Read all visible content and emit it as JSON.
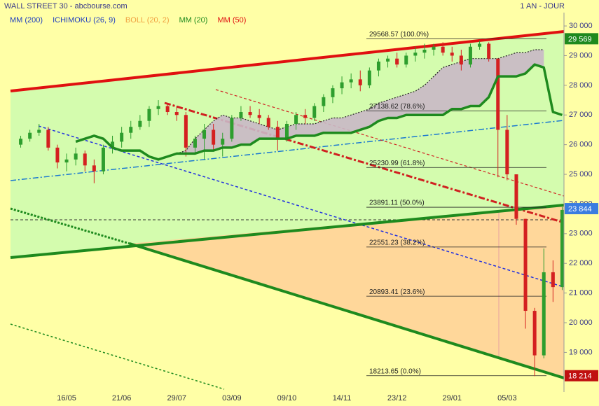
{
  "chart_data": {
    "type": "candlestick",
    "title": "WALL STREET 30 - abcbourse.com",
    "period": "1 AN - JOUR",
    "legend": [
      {
        "name": "MM (200)",
        "color": "#1f3fbf"
      },
      {
        "name": "ICHIMOKU (26, 9)",
        "color": "#1f3fbf"
      },
      {
        "name": "BOLL (20, 2)",
        "color": "#f0a040"
      },
      {
        "name": "MM (20)",
        "color": "#1e8a1e"
      },
      {
        "name": "MM (50)",
        "color": "#e01010"
      }
    ],
    "up_color": "#2e9e2e",
    "down_color": "#d42020",
    "categories": [
      null,
      null,
      null,
      null,
      null,
      "16/05",
      null,
      null,
      null,
      null,
      null,
      "21/06",
      null,
      null,
      null,
      null,
      null,
      "29/07",
      null,
      null,
      null,
      null,
      null,
      "03/09",
      null,
      null,
      null,
      null,
      null,
      "09/10",
      null,
      null,
      null,
      null,
      null,
      "14/11",
      null,
      null,
      null,
      null,
      null,
      "23/12",
      null,
      null,
      null,
      null,
      null,
      "29/01",
      null,
      null,
      null,
      null,
      null,
      "05/03",
      null,
      null,
      null,
      null,
      null,
      null
    ],
    "ohlc": [
      [
        26000,
        26300,
        25900,
        26200
      ],
      [
        26200,
        26500,
        26100,
        26400
      ],
      [
        26400,
        26700,
        26300,
        26500
      ],
      [
        26500,
        26600,
        25800,
        25900
      ],
      [
        25900,
        26000,
        25200,
        25400
      ],
      [
        25400,
        25700,
        25100,
        25500
      ],
      [
        25500,
        25900,
        25300,
        25700
      ],
      [
        25700,
        25800,
        25100,
        25300
      ],
      [
        25300,
        25500,
        24700,
        25100
      ],
      [
        25100,
        26000,
        25000,
        25900
      ],
      [
        25900,
        26300,
        25700,
        26100
      ],
      [
        26100,
        26600,
        25900,
        26400
      ],
      [
        26400,
        26800,
        26200,
        26600
      ],
      [
        26600,
        27000,
        26500,
        26800
      ],
      [
        26800,
        27300,
        26600,
        27200
      ],
      [
        27200,
        27500,
        27000,
        27300
      ],
      [
        27300,
        27400,
        27000,
        27100
      ],
      [
        27100,
        27300,
        26800,
        27000
      ],
      [
        27000,
        27100,
        25600,
        25900
      ],
      [
        25900,
        26300,
        25700,
        26200
      ],
      [
        26200,
        26700,
        25500,
        26500
      ],
      [
        26500,
        26700,
        25800,
        26000
      ],
      [
        26000,
        26400,
        25600,
        26200
      ],
      [
        26200,
        27000,
        26100,
        26900
      ],
      [
        26900,
        27300,
        26800,
        27100
      ],
      [
        27100,
        27300,
        26900,
        27000
      ],
      [
        27000,
        27200,
        26700,
        26900
      ],
      [
        26900,
        27000,
        26500,
        26600
      ],
      [
        26600,
        26800,
        25800,
        26200
      ],
      [
        26200,
        26800,
        26100,
        26700
      ],
      [
        26700,
        27100,
        26500,
        27000
      ],
      [
        27000,
        27200,
        26700,
        26900
      ],
      [
        26900,
        27400,
        26800,
        27300
      ],
      [
        27300,
        27700,
        27100,
        27600
      ],
      [
        27600,
        28000,
        27400,
        27900
      ],
      [
        27900,
        28300,
        27700,
        28100
      ],
      [
        28100,
        28400,
        27900,
        28200
      ],
      [
        28200,
        28500,
        27800,
        28000
      ],
      [
        28000,
        28600,
        27900,
        28500
      ],
      [
        28500,
        28900,
        28300,
        28800
      ],
      [
        28800,
        29000,
        28600,
        28900
      ],
      [
        28900,
        29100,
        28600,
        28700
      ],
      [
        28700,
        29100,
        28600,
        29000
      ],
      [
        29000,
        29300,
        28800,
        29100
      ],
      [
        29100,
        29400,
        28900,
        29200
      ],
      [
        29200,
        29400,
        29000,
        29300
      ],
      [
        29300,
        29450,
        29000,
        29100
      ],
      [
        29100,
        29300,
        28800,
        29000
      ],
      [
        29000,
        29200,
        28500,
        28700
      ],
      [
        28700,
        29400,
        28600,
        29300
      ],
      [
        29300,
        29500,
        29200,
        29400
      ],
      [
        29400,
        29450,
        28800,
        28900
      ],
      [
        28900,
        28900,
        24900,
        26500
      ],
      [
        26500,
        27000,
        24800,
        25000
      ],
      [
        25000,
        25000,
        23300,
        23500
      ],
      [
        23500,
        23500,
        19800,
        20400
      ],
      [
        20400,
        20500,
        18200,
        18900
      ],
      [
        18900,
        22500,
        18800,
        21700
      ],
      [
        21700,
        22100,
        20700,
        21200
      ],
      [
        21200,
        23900,
        21100,
        23800
      ]
    ],
    "mm20": [
      null,
      null,
      null,
      null,
      null,
      null,
      26100,
      26200,
      26300,
      26200,
      25900,
      25800,
      25800,
      25800,
      25600,
      25500,
      25600,
      25700,
      25700,
      25700,
      25800,
      25800,
      25900,
      25900,
      26000,
      26000,
      26200,
      26200,
      26200,
      26200,
      26300,
      26300,
      26300,
      26400,
      26400,
      26400,
      26400,
      26500,
      26600,
      26800,
      26900,
      26900,
      27000,
      27000,
      27000,
      27000,
      27000,
      27200,
      27200,
      27300,
      27300,
      27600,
      28300,
      28300,
      28300,
      28400,
      28700,
      28600,
      27100,
      27000
    ],
    "cloud": [
      null,
      null,
      null,
      null,
      null,
      null,
      null,
      null,
      null,
      null,
      null,
      null,
      null,
      null,
      null,
      null,
      null,
      25700,
      25800,
      26200,
      26500,
      26800,
      27000,
      26900,
      26900,
      26800,
      26700,
      26600,
      26500,
      26600,
      26700,
      26700,
      26700,
      26800,
      26900,
      26900,
      27000,
      27100,
      27200,
      27400,
      27500,
      27600,
      27700,
      27800,
      28000,
      28300,
      28600,
      28700,
      28800,
      28900,
      28900,
      28900,
      28900,
      29000,
      29100,
      29100,
      29200,
      29200,
      null,
      null
    ],
    "fibonacci": [
      {
        "value": 29568.57,
        "label": "29568.57  (100.0%)"
      },
      {
        "value": 27138.62,
        "label": "27138.62  (78.6%)"
      },
      {
        "value": 25230.99,
        "label": "25230.99  (61.8%)"
      },
      {
        "value": 23891.11,
        "label": "23891.11  (50.0%)"
      },
      {
        "value": 22551.23,
        "label": "22551.23  (38.2%)"
      },
      {
        "value": 20893.41,
        "label": "20893.41  (23.6%)"
      },
      {
        "value": 18213.65,
        "label": "18213.65  (0.0%)"
      }
    ],
    "price_badges": [
      {
        "value": 29569,
        "label": "29 569",
        "color": "#1e8a1e"
      },
      {
        "value": 23844,
        "label": "23 844",
        "color": "#3a7de0"
      },
      {
        "value": 18214,
        "label": "18 214",
        "color": "#c01010"
      }
    ],
    "ylim": [
      17665,
      30450
    ],
    "yticks": [
      {
        "value": 30000,
        "label": "30 000"
      },
      {
        "value": 29000,
        "label": "29 000"
      },
      {
        "value": 28000,
        "label": "28 000"
      },
      {
        "value": 27000,
        "label": "27 000"
      },
      {
        "value": 26000,
        "label": "26 000"
      },
      {
        "value": 25000,
        "label": "25 000"
      },
      {
        "value": 24000,
        "label": "24 000"
      },
      {
        "value": 23000,
        "label": "23 000"
      },
      {
        "value": 22000,
        "label": "22 000"
      },
      {
        "value": 21000,
        "label": "21 000"
      },
      {
        "value": 20000,
        "label": "20 000"
      },
      {
        "value": 19000,
        "label": "19 000"
      }
    ]
  }
}
